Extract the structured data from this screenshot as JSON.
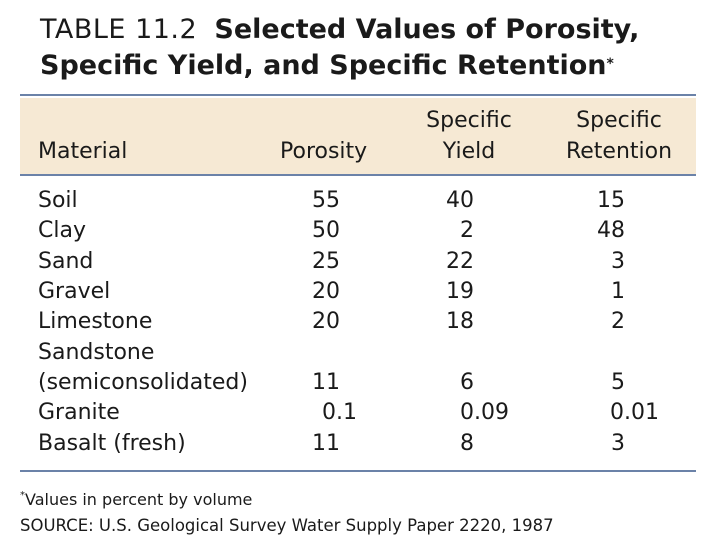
{
  "title": {
    "number": "TABLE 11.2",
    "text_line1": "Selected Values of Porosity,",
    "text_line2": "Specific Yield, and Specific Retention",
    "mark": "*"
  },
  "headers": {
    "material": "Material",
    "porosity": "Porosity",
    "yield_line1": "Specific",
    "yield_line2": "Yield",
    "retention_line1": "Specific",
    "retention_line2": "Retention"
  },
  "rows": [
    {
      "material": "Soil",
      "porosity": "55",
      "yield": "40",
      "retention": "15"
    },
    {
      "material": "Clay",
      "porosity": "50",
      "yield": "2",
      "retention": "48"
    },
    {
      "material": "Sand",
      "porosity": "25",
      "yield": "22",
      "retention": "3"
    },
    {
      "material": "Gravel",
      "porosity": "20",
      "yield": "19",
      "retention": "1"
    },
    {
      "material": "Limestone",
      "porosity": "20",
      "yield": "18",
      "retention": "2"
    },
    {
      "material": "Sandstone",
      "porosity": "",
      "yield": "",
      "retention": ""
    },
    {
      "material": "(semiconsolidated)",
      "porosity": "11",
      "yield": "6",
      "retention": "5"
    },
    {
      "material": "Granite",
      "porosity": "0.1",
      "yield": "0.09",
      "retention": "0.01"
    },
    {
      "material": "Basalt (fresh)",
      "porosity": "11",
      "yield": "8",
      "retention": "3"
    }
  ],
  "footnote": {
    "mark": "*",
    "text": "Values in percent by volume",
    "source": "SOURCE: U.S. Geological Survey Water Supply Paper 2220, 1987"
  }
}
